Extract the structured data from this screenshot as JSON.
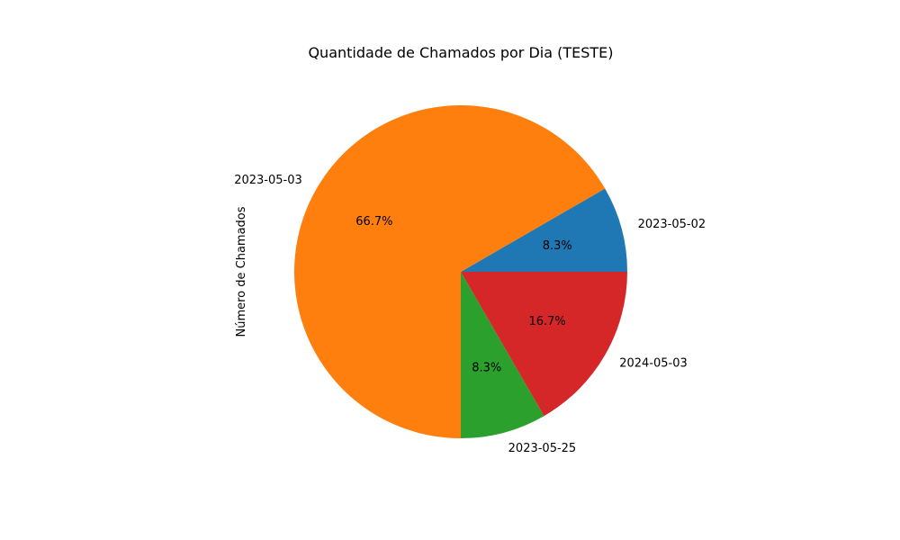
{
  "chart_data": {
    "type": "pie",
    "title": "Quantidade de Chamados por Dia (TESTE)",
    "ylabel": "Número de Chamados",
    "labels": [
      "2023-05-02",
      "2023-05-03",
      "2023-05-25",
      "2024-05-03"
    ],
    "values": [
      1,
      8,
      1,
      2
    ],
    "percent_labels": [
      "8.3%",
      "66.7%",
      "8.3%",
      "16.7%"
    ],
    "colors": [
      "#1f77b4",
      "#ff7f0e",
      "#2ca02c",
      "#d62728"
    ],
    "start_angle": 0,
    "direction": "counterclockwise"
  }
}
